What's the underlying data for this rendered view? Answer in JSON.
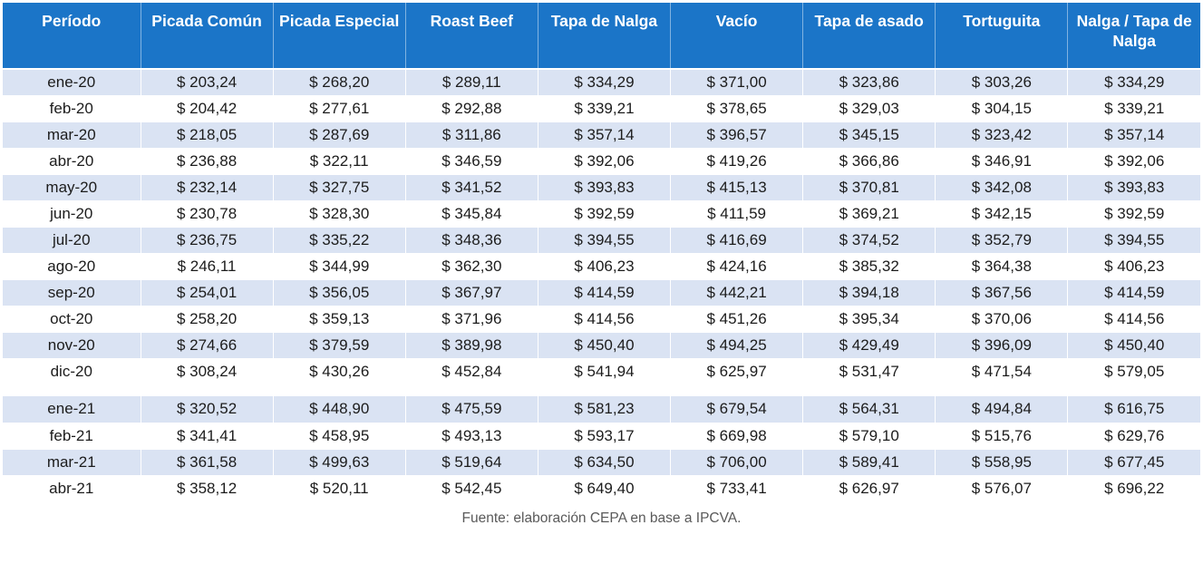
{
  "chart_data": {
    "type": "table",
    "columns": [
      "Período",
      "Picada Común",
      "Picada Especial",
      "Roast Beef",
      "Tapa de Nalga",
      "Vacío",
      "Tapa de asado",
      "Tortuguita",
      "Nalga / Tapa de Nalga"
    ],
    "currency_format": "$ ###,##",
    "row_groups": [
      {
        "year": "2020",
        "rows": [
          [
            "ene-20",
            "$ 203,24",
            "$ 268,20",
            "$ 289,11",
            "$ 334,29",
            "$ 371,00",
            "$ 323,86",
            "$ 303,26",
            "$ 334,29"
          ],
          [
            "feb-20",
            "$ 204,42",
            "$ 277,61",
            "$ 292,88",
            "$ 339,21",
            "$ 378,65",
            "$ 329,03",
            "$ 304,15",
            "$ 339,21"
          ],
          [
            "mar-20",
            "$ 218,05",
            "$ 287,69",
            "$ 311,86",
            "$ 357,14",
            "$ 396,57",
            "$ 345,15",
            "$ 323,42",
            "$ 357,14"
          ],
          [
            "abr-20",
            "$ 236,88",
            "$ 322,11",
            "$ 346,59",
            "$ 392,06",
            "$ 419,26",
            "$ 366,86",
            "$ 346,91",
            "$ 392,06"
          ],
          [
            "may-20",
            "$ 232,14",
            "$ 327,75",
            "$ 341,52",
            "$ 393,83",
            "$ 415,13",
            "$ 370,81",
            "$ 342,08",
            "$ 393,83"
          ],
          [
            "jun-20",
            "$ 230,78",
            "$ 328,30",
            "$ 345,84",
            "$ 392,59",
            "$ 411,59",
            "$ 369,21",
            "$ 342,15",
            "$ 392,59"
          ],
          [
            "jul-20",
            "$ 236,75",
            "$ 335,22",
            "$ 348,36",
            "$ 394,55",
            "$ 416,69",
            "$ 374,52",
            "$ 352,79",
            "$ 394,55"
          ],
          [
            "ago-20",
            "$ 246,11",
            "$ 344,99",
            "$ 362,30",
            "$ 406,23",
            "$ 424,16",
            "$ 385,32",
            "$ 364,38",
            "$ 406,23"
          ],
          [
            "sep-20",
            "$ 254,01",
            "$ 356,05",
            "$ 367,97",
            "$ 414,59",
            "$ 442,21",
            "$ 394,18",
            "$ 367,56",
            "$ 414,59"
          ],
          [
            "oct-20",
            "$ 258,20",
            "$ 359,13",
            "$ 371,96",
            "$ 414,56",
            "$ 451,26",
            "$ 395,34",
            "$ 370,06",
            "$ 414,56"
          ],
          [
            "nov-20",
            "$ 274,66",
            "$ 379,59",
            "$ 389,98",
            "$ 450,40",
            "$ 494,25",
            "$ 429,49",
            "$ 396,09",
            "$ 450,40"
          ],
          [
            "dic-20",
            "$ 308,24",
            "$ 430,26",
            "$ 452,84",
            "$ 541,94",
            "$ 625,97",
            "$ 531,47",
            "$ 471,54",
            "$ 579,05"
          ]
        ]
      },
      {
        "year": "2021",
        "rows": [
          [
            "ene-21",
            "$ 320,52",
            "$ 448,90",
            "$ 475,59",
            "$ 581,23",
            "$ 679,54",
            "$ 564,31",
            "$ 494,84",
            "$ 616,75"
          ],
          [
            "feb-21",
            "$ 341,41",
            "$ 458,95",
            "$ 493,13",
            "$ 593,17",
            "$ 669,98",
            "$ 579,10",
            "$ 515,76",
            "$ 629,76"
          ],
          [
            "mar-21",
            "$ 361,58",
            "$ 499,63",
            "$ 519,64",
            "$ 634,50",
            "$ 706,00",
            "$ 589,41",
            "$ 558,95",
            "$ 677,45"
          ],
          [
            "abr-21",
            "$ 358,12",
            "$ 520,11",
            "$ 542,45",
            "$ 649,40",
            "$ 733,41",
            "$ 626,97",
            "$ 576,07",
            "$ 696,22"
          ]
        ]
      }
    ],
    "source_note": "Fuente: elaboración CEPA en base a IPCVA.",
    "layout": {
      "striped": true,
      "stripe_pattern": "alternating starting shaded at ene-20, continuing across the year gap"
    },
    "colors": {
      "header_bg": "#1B75C8",
      "header_text": "#FFFFFF",
      "row_alt_bg": "#DAE3F3",
      "row_bg": "#FFFFFF",
      "body_text": "#1C1C1C",
      "source_text": "#595959"
    }
  }
}
